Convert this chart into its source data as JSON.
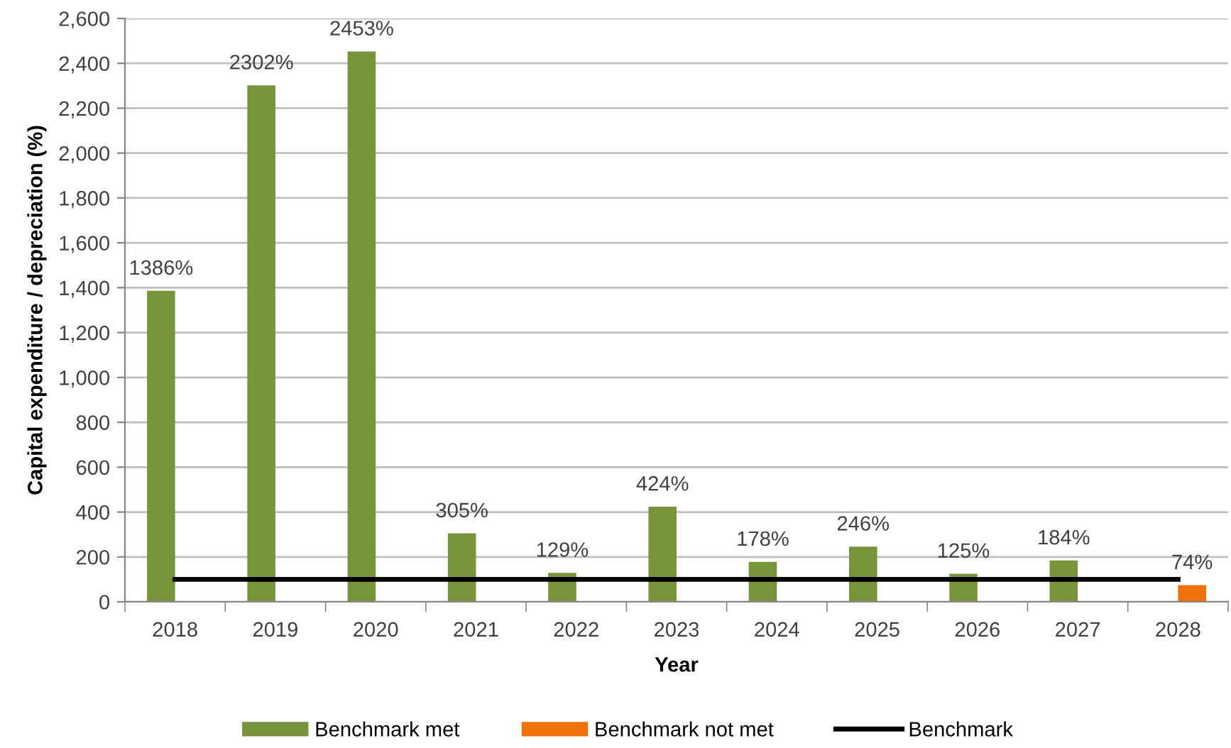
{
  "chart_data": {
    "type": "bar",
    "xlabel": "Year",
    "ylabel": "Capital expenditure / depreciation (%)",
    "categories": [
      "2018",
      "2019",
      "2020",
      "2021",
      "2022",
      "2023",
      "2024",
      "2025",
      "2026",
      "2027",
      "2028"
    ],
    "series": [
      {
        "name": "Benchmark met",
        "color": "#77933c",
        "values": [
          1386,
          2302,
          2453,
          305,
          129,
          424,
          178,
          246,
          125,
          184,
          null
        ],
        "value_labels": [
          "1386%",
          "2302%",
          "2453%",
          "305%",
          "129%",
          "424%",
          "178%",
          "246%",
          "125%",
          "184%",
          null
        ]
      },
      {
        "name": "Benchmark not met",
        "color": "#f0700a",
        "values": [
          null,
          null,
          null,
          null,
          null,
          null,
          null,
          null,
          null,
          null,
          74
        ],
        "value_labels": [
          null,
          null,
          null,
          null,
          null,
          null,
          null,
          null,
          null,
          null,
          "74%"
        ]
      },
      {
        "name": "Benchmark",
        "type": "line",
        "color": "#000000",
        "values": [
          100,
          100,
          100,
          100,
          100,
          100,
          100,
          100,
          100,
          100,
          100
        ]
      }
    ],
    "ylim": [
      0,
      2600
    ],
    "yticks": [
      0,
      200,
      400,
      600,
      800,
      {
        "value": 1000,
        "label": "1,000"
      },
      {
        "value": 1200,
        "label": "1,200"
      },
      {
        "value": 1400,
        "label": "1,400"
      },
      {
        "value": 1600,
        "label": "1,600"
      },
      {
        "value": 1800,
        "label": "1,800"
      },
      {
        "value": 2000,
        "label": "2,000"
      },
      {
        "value": 2200,
        "label": "2,200"
      },
      {
        "value": 2400,
        "label": "2,400"
      },
      {
        "value": 2600,
        "label": "2,600"
      }
    ],
    "grid": "y",
    "legend": "bottom"
  }
}
